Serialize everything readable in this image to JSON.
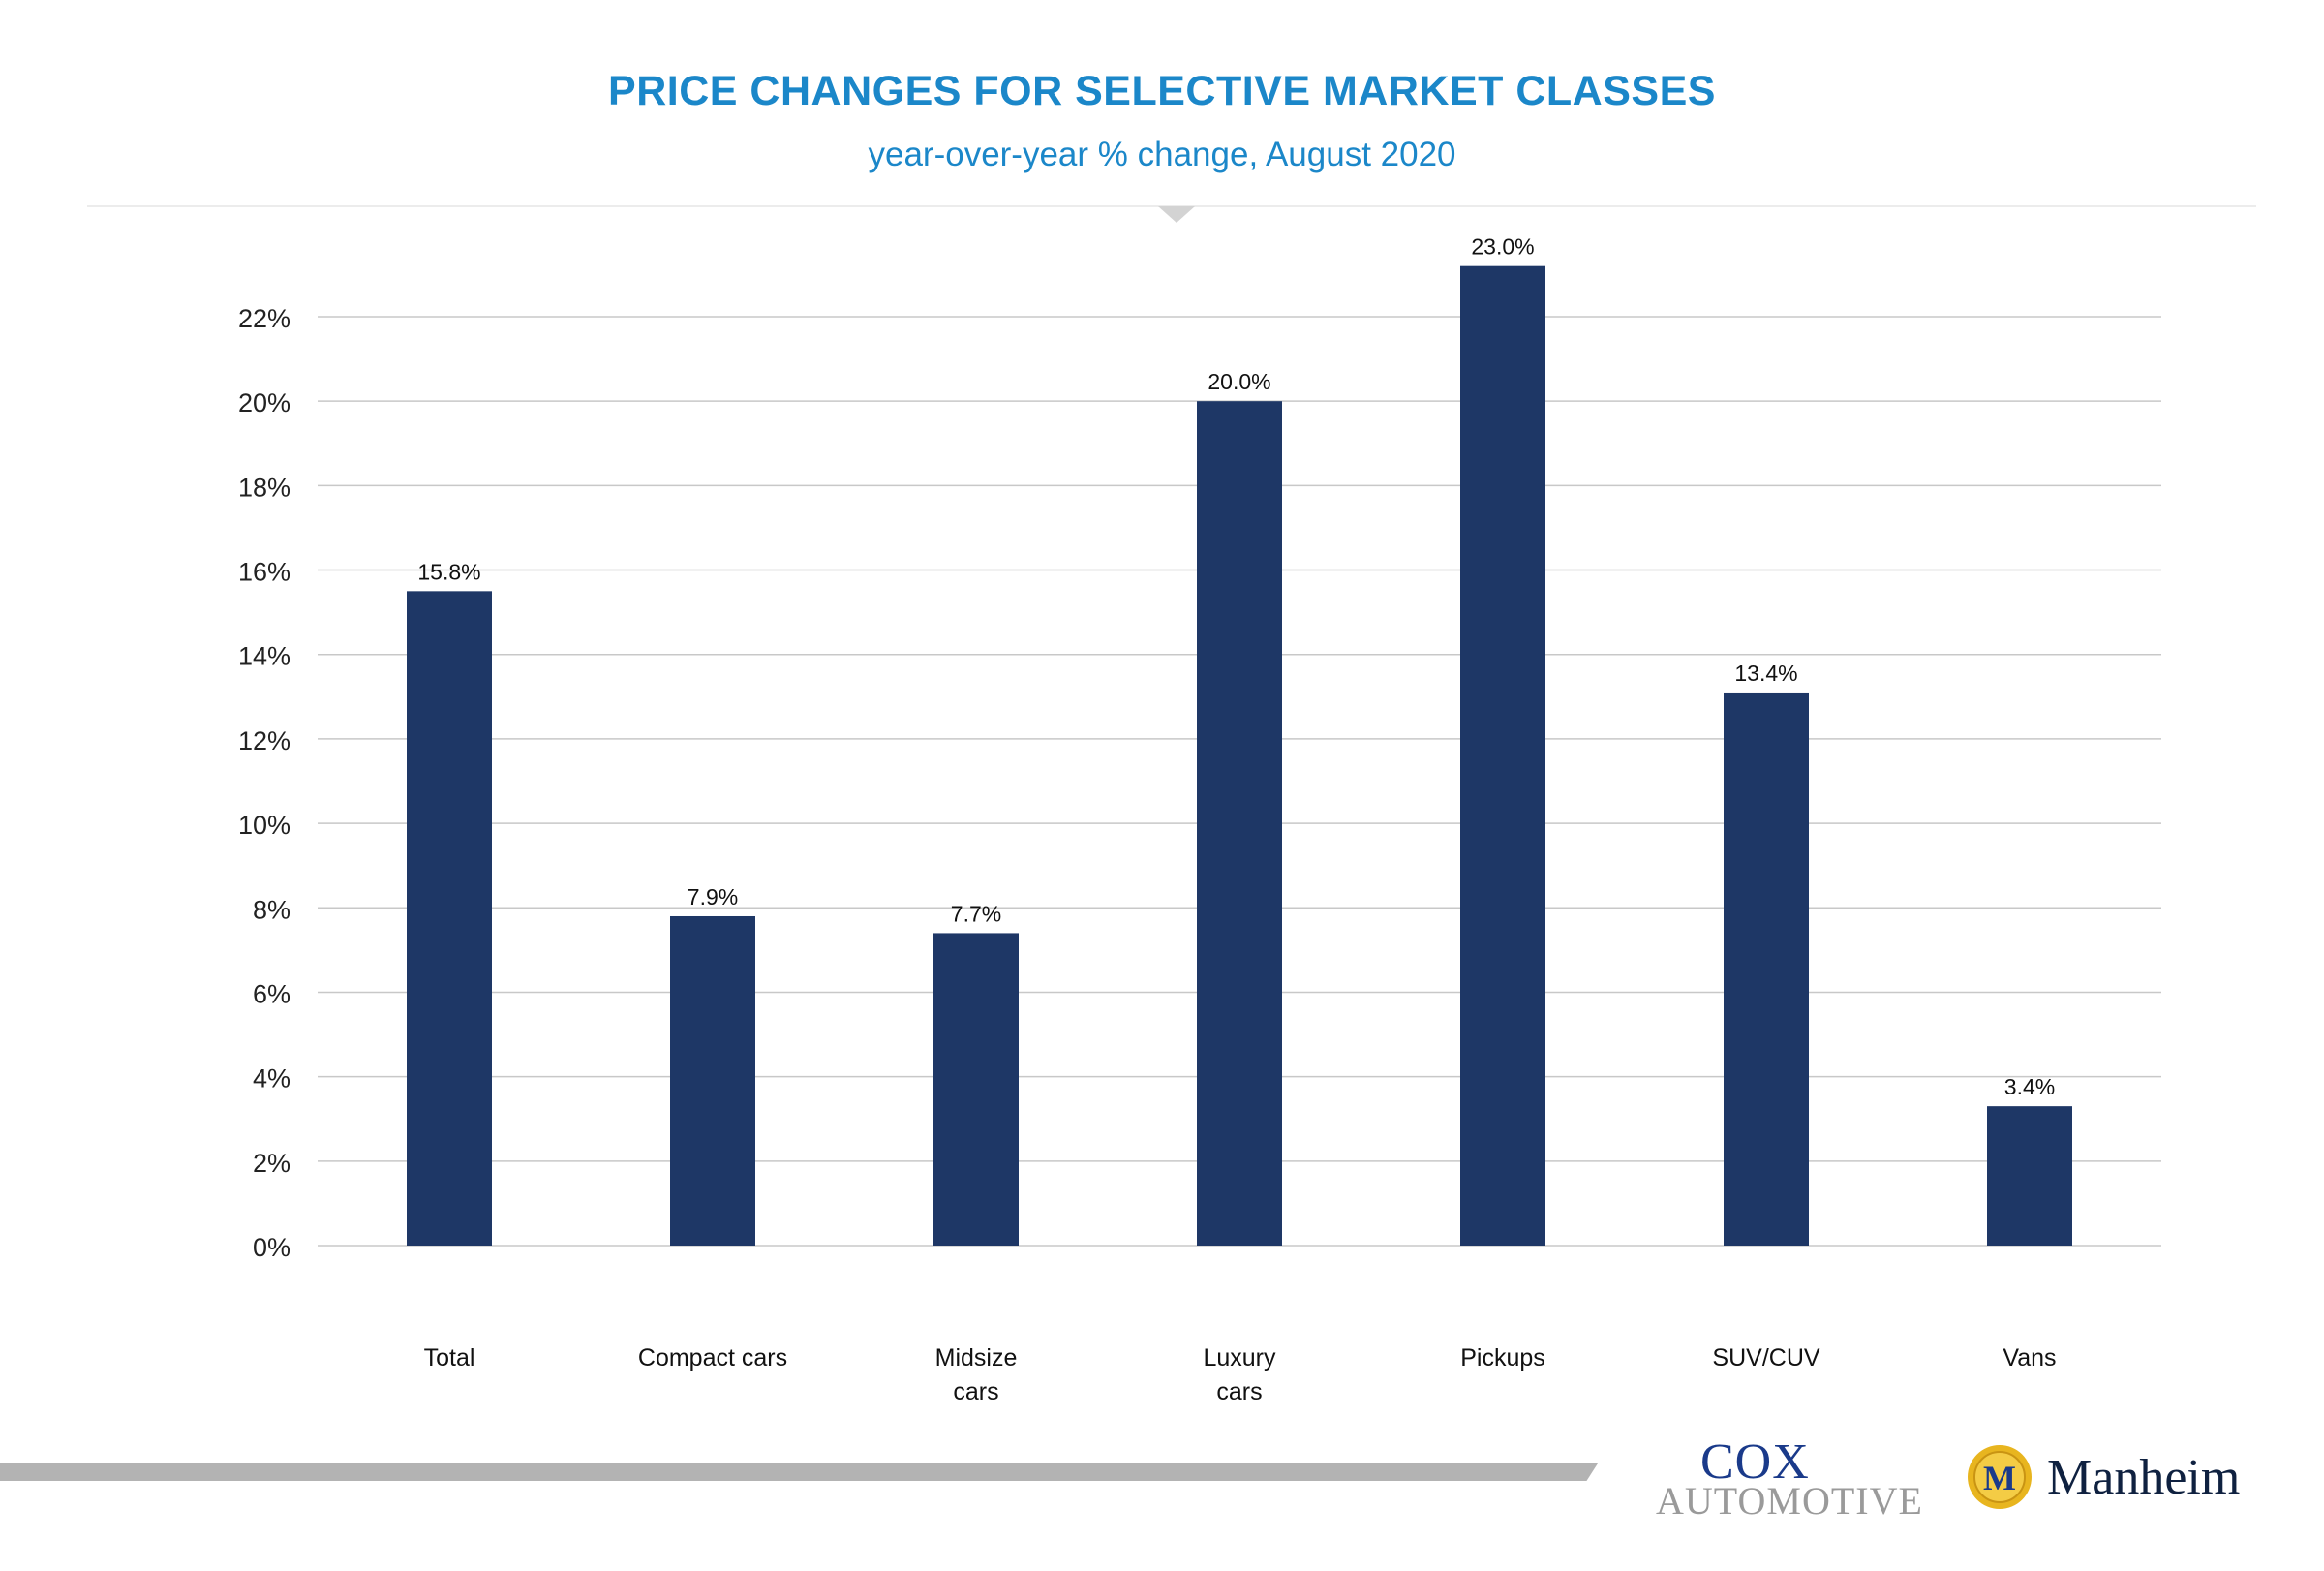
{
  "header": {
    "title": "PRICE CHANGES FOR SELECTIVE MARKET CLASSES",
    "subtitle": "year-over-year % change, August 2020"
  },
  "colors": {
    "bar": "#1e3766",
    "title": "#1b87c9",
    "grid": "#c8c8c8",
    "footer_bar": "#b3b3b3"
  },
  "chart_data": {
    "type": "bar",
    "title": "PRICE CHANGES FOR SELECTIVE MARKET CLASSES",
    "subtitle": "year-over-year % change, August 2020",
    "categories": [
      "Total",
      "Compact cars",
      "Midsize cars",
      "Luxury cars",
      "Pickups",
      "SUV/CUV",
      "Vans"
    ],
    "category_lines": [
      [
        "Total"
      ],
      [
        "Compact cars"
      ],
      [
        "Midsize",
        "cars"
      ],
      [
        "Luxury",
        "cars"
      ],
      [
        "Pickups"
      ],
      [
        "SUV/CUV"
      ],
      [
        "Vans"
      ]
    ],
    "values": [
      15.8,
      7.9,
      7.7,
      20.0,
      23.0,
      13.4,
      3.4
    ],
    "bar_heights": [
      15.5,
      7.8,
      7.4,
      20.0,
      23.2,
      13.1,
      3.3
    ],
    "data_labels": [
      "15.8%",
      "7.9%",
      "7.7%",
      "20.0%",
      "23.0%",
      "13.4%",
      "3.4%"
    ],
    "ylim": [
      0,
      22
    ],
    "yticks": [
      0,
      2,
      4,
      6,
      8,
      10,
      12,
      14,
      16,
      18,
      20,
      22
    ],
    "ytick_labels": [
      "0%",
      "2%",
      "4%",
      "6%",
      "8%",
      "10%",
      "12%",
      "14%",
      "16%",
      "18%",
      "20%",
      "22%"
    ],
    "xlabel": "",
    "ylabel": "",
    "grid": true,
    "legend": "none"
  },
  "footer": {
    "logo_cox_line1": "COX",
    "logo_cox_line2": "AUTOMOTIVE",
    "logo_cox_tm": "™",
    "logo_manheim_text": "Manheim",
    "logo_manheim_emblem": "M"
  }
}
